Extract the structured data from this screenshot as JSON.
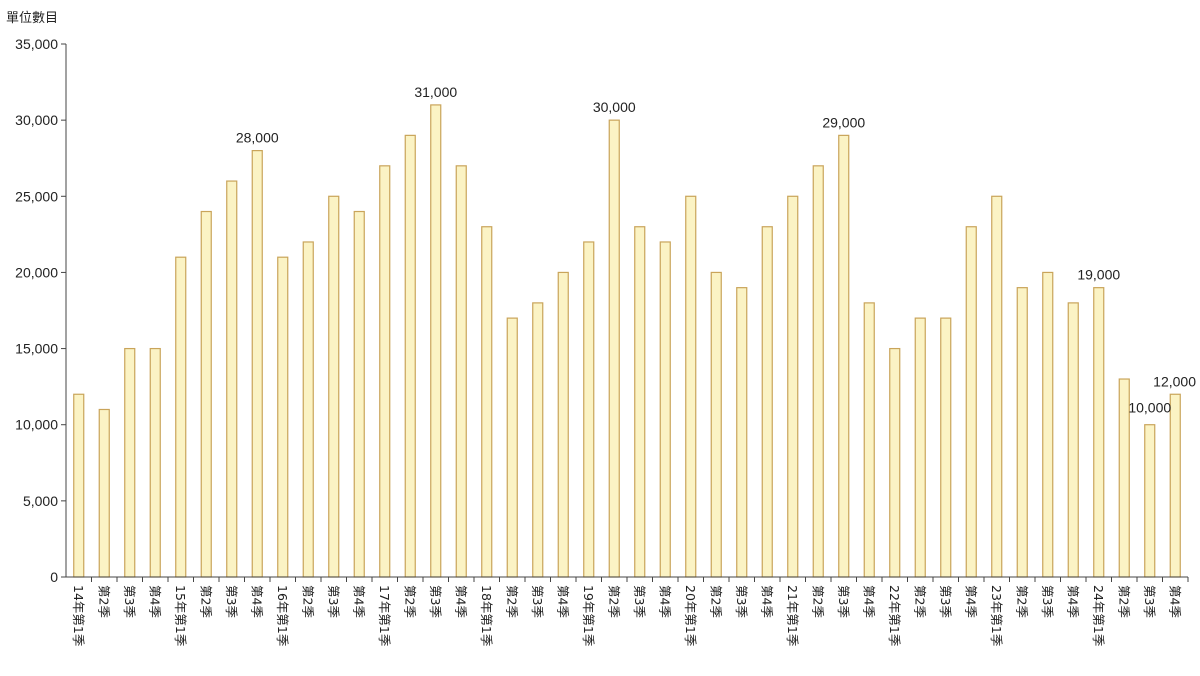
{
  "chart_data": {
    "type": "bar",
    "title": "",
    "ylabel": "單位數目",
    "xlabel": "",
    "ylim": [
      0,
      35000
    ],
    "yticks": [
      "0",
      "5,000",
      "10,000",
      "15,000",
      "20,000",
      "25,000",
      "30,000",
      "35,000"
    ],
    "ytick_values": [
      0,
      5000,
      10000,
      15000,
      20000,
      25000,
      30000,
      35000
    ],
    "grid": false,
    "legend": "none",
    "bar_fill": "#fbf3c4",
    "bar_stroke": "#c9a45a",
    "categories": [
      "14年第1季",
      "第2季",
      "第3季",
      "第4季",
      "15年第1季",
      "第2季",
      "第3季",
      "第4季",
      "16年第1季",
      "第2季",
      "第3季",
      "第4季",
      "17年第1季",
      "第2季",
      "第3季",
      "第4季",
      "18年第1季",
      "第2季",
      "第3季",
      "第4季",
      "19年第1季",
      "第2季",
      "第3季",
      "第4季",
      "20年第1季",
      "第2季",
      "第3季",
      "第4季",
      "21年第1季",
      "第2季",
      "第3季",
      "第4季",
      "22年第1季",
      "第2季",
      "第3季",
      "第4季",
      "23年第1季",
      "第2季",
      "第3季",
      "第4季",
      "24年第1季",
      "第2季",
      "第3季",
      "第4季"
    ],
    "values": [
      12000,
      11000,
      15000,
      15000,
      21000,
      24000,
      26000,
      28000,
      21000,
      22000,
      25000,
      24000,
      27000,
      29000,
      31000,
      27000,
      23000,
      17000,
      18000,
      20000,
      22000,
      30000,
      23000,
      22000,
      25000,
      20000,
      19000,
      23000,
      25000,
      27000,
      29000,
      18000,
      15000,
      17000,
      17000,
      23000,
      25000,
      19000,
      20000,
      18000,
      19000,
      13000,
      10000,
      12000
    ],
    "data_labels": [
      {
        "index": 7,
        "text": "28,000"
      },
      {
        "index": 14,
        "text": "31,000"
      },
      {
        "index": 21,
        "text": "30,000"
      },
      {
        "index": 30,
        "text": "29,000"
      },
      {
        "index": 40,
        "text": "19,000"
      },
      {
        "index": 42,
        "text": "10,000"
      },
      {
        "index": 43,
        "text": "12,000"
      }
    ]
  }
}
